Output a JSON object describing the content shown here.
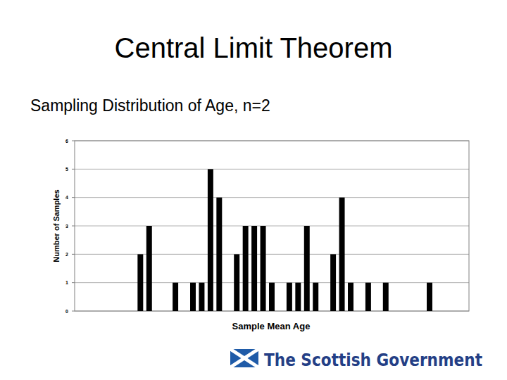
{
  "slide": {
    "title": "Central Limit Theorem",
    "subtitle": "Sampling Distribution of Age, n=2",
    "logo": "The Scottish Government"
  },
  "chart_data": {
    "type": "bar",
    "x_label": "Sample Mean Age",
    "y_label": "Number of Samples",
    "categories": [
      null,
      null,
      null,
      null,
      null,
      null,
      null,
      null,
      null,
      null,
      null,
      null,
      null,
      null,
      null,
      null,
      null,
      null,
      null,
      null,
      null,
      null,
      null,
      null,
      null,
      null,
      null,
      null,
      null,
      null,
      null,
      null,
      null,
      null,
      null,
      null,
      null,
      null,
      null,
      null,
      null,
      null,
      null,
      null,
      null
    ],
    "values": [
      0,
      0,
      0,
      0,
      0,
      0,
      0,
      2,
      3,
      0,
      0,
      1,
      0,
      1,
      1,
      5,
      4,
      0,
      2,
      3,
      3,
      3,
      1,
      0,
      1,
      1,
      3,
      1,
      0,
      2,
      4,
      1,
      0,
      1,
      0,
      1,
      0,
      0,
      0,
      0,
      1,
      0,
      0,
      0,
      0
    ],
    "color": "#000000",
    "ylim": [
      0,
      6
    ],
    "yticks": [
      0,
      1,
      2,
      3,
      4,
      5,
      6
    ],
    "grid": true,
    "tick_labels": "y"
  }
}
